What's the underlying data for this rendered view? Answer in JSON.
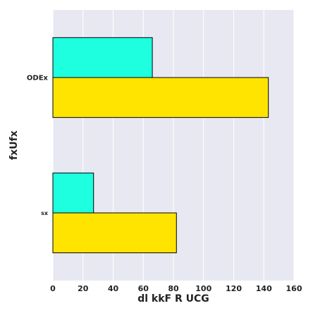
{
  "chart_data": {
    "type": "bar",
    "orientation": "horizontal",
    "categories": [
      "ODEx",
      "sx"
    ],
    "series": [
      {
        "values": [
          66,
          27
        ],
        "color": "#1effe0"
      },
      {
        "values": [
          143,
          82
        ],
        "color": "#ffe400"
      }
    ],
    "xlabel": "dl kkF R UCG",
    "ylabel": "fxUfx",
    "xlim": [
      0,
      160
    ],
    "xticks": [
      0,
      20,
      40,
      60,
      80,
      100,
      120,
      140,
      160
    ],
    "grid": true,
    "legend": "none",
    "background_color": "#e8e8f2",
    "bar_edge_color": "#000000"
  }
}
